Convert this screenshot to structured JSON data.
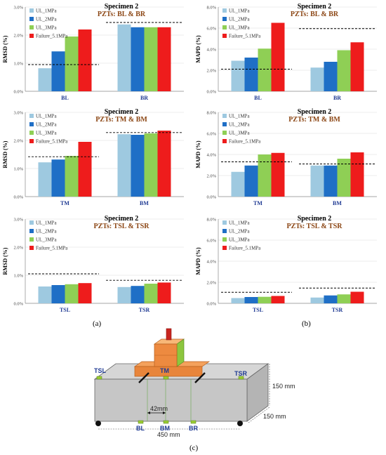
{
  "panel_labels": {
    "a": "(a)",
    "b": "(b)",
    "c": "(c)"
  },
  "colors": {
    "UL_1MPa": "#9ec9e0",
    "UL_2MPa": "#1f6fc6",
    "UL_3MPa": "#8fcf55",
    "Failure_5.1MPa": "#ee1c1c",
    "grid": "#d9d9d9",
    "threshold": "#000000"
  },
  "chart_data": [
    {
      "type": "bar",
      "title": "Specimen 2",
      "subtitle": "PZTs: BL & BR",
      "ylabel": "RMSD (%)",
      "categories": [
        "BL",
        "BR"
      ],
      "ylim": [
        0,
        3.0
      ],
      "yticks": [
        "0.0%",
        "1.0%",
        "2.0%",
        "3.0%"
      ],
      "series": [
        {
          "name": "UL_1MPa",
          "values": [
            0.82,
            2.38
          ]
        },
        {
          "name": "UL_2MPa",
          "values": [
            1.42,
            2.28
          ]
        },
        {
          "name": "UL_3MPa",
          "values": [
            1.95,
            2.28
          ]
        },
        {
          "name": "Failure_5.1MPa",
          "values": [
            2.2,
            2.28
          ]
        }
      ],
      "thresholds": [
        0.95,
        2.45
      ]
    },
    {
      "type": "bar",
      "title": "Specimen 2",
      "subtitle": "PZTs: BL & BR",
      "ylabel": "MAPD (%)",
      "categories": [
        "BL",
        "BR"
      ],
      "ylim": [
        0,
        8.0
      ],
      "yticks": [
        "0.0%",
        "2.0%",
        "4.0%",
        "6.0%",
        "8.0%"
      ],
      "series": [
        {
          "name": "UL_1MPa",
          "values": [
            2.9,
            2.25
          ]
        },
        {
          "name": "UL_2MPa",
          "values": [
            3.2,
            2.8
          ]
        },
        {
          "name": "UL_3MPa",
          "values": [
            4.05,
            3.9
          ]
        },
        {
          "name": "Failure_5.1MPa",
          "values": [
            6.5,
            4.65
          ]
        }
      ],
      "thresholds": [
        2.1,
        5.95
      ]
    },
    {
      "type": "bar",
      "title": "Specimen 2",
      "subtitle": "PZTs: TM & BM",
      "ylabel": "RMSD (%)",
      "categories": [
        "TM",
        "BM"
      ],
      "ylim": [
        0,
        3.0
      ],
      "yticks": [
        "0.0%",
        "1.0%",
        "2.0%",
        "3.0%"
      ],
      "series": [
        {
          "name": "UL_1MPa",
          "values": [
            1.22,
            2.22
          ]
        },
        {
          "name": "UL_2MPa",
          "values": [
            1.32,
            2.2
          ]
        },
        {
          "name": "UL_3MPa",
          "values": [
            1.45,
            2.25
          ]
        },
        {
          "name": "Failure_5.1MPa",
          "values": [
            1.95,
            2.35
          ]
        }
      ],
      "thresholds": [
        1.42,
        2.28
      ]
    },
    {
      "type": "bar",
      "title": "Specimen 2",
      "subtitle": "PZTs: TM & BM",
      "ylabel": "MAPD (%)",
      "categories": [
        "TM",
        "BM"
      ],
      "ylim": [
        0,
        8.0
      ],
      "yticks": [
        "0.0%",
        "2.0%",
        "4.0%",
        "6.0%",
        "8.0%"
      ],
      "series": [
        {
          "name": "UL_1MPa",
          "values": [
            2.35,
            2.95
          ]
        },
        {
          "name": "UL_2MPa",
          "values": [
            2.95,
            2.95
          ]
        },
        {
          "name": "UL_3MPa",
          "values": [
            4.0,
            3.6
          ]
        },
        {
          "name": "Failure_5.1MPa",
          "values": [
            4.15,
            4.2
          ]
        }
      ],
      "thresholds": [
        3.3,
        3.1
      ]
    },
    {
      "type": "bar",
      "title": "Specimen 2",
      "subtitle": "PZTs: TSL & TSR",
      "ylabel": "RMSD (%)",
      "categories": [
        "TSL",
        "TSR"
      ],
      "ylim": [
        0,
        3.0
      ],
      "yticks": [
        "0.0%",
        "1.0%",
        "2.0%",
        "3.0%"
      ],
      "series": [
        {
          "name": "UL_1MPa",
          "values": [
            0.6,
            0.58
          ]
        },
        {
          "name": "UL_2MPa",
          "values": [
            0.65,
            0.62
          ]
        },
        {
          "name": "UL_3MPa",
          "values": [
            0.68,
            0.7
          ]
        },
        {
          "name": "Failure_5.1MPa",
          "values": [
            0.72,
            0.74
          ]
        }
      ],
      "thresholds": [
        1.05,
        0.82
      ]
    },
    {
      "type": "bar",
      "title": "Specimen 2",
      "subtitle": "PZTs:  TSL & TSR",
      "ylabel": "MAPD (%)",
      "categories": [
        "TSL",
        "TSR"
      ],
      "ylim": [
        0,
        8.0
      ],
      "yticks": [
        "0.0%",
        "2.0%",
        "4.0%",
        "6.0%",
        "8.0%"
      ],
      "series": [
        {
          "name": "UL_1MPa",
          "values": [
            0.5,
            0.55
          ]
        },
        {
          "name": "UL_2MPa",
          "values": [
            0.6,
            0.75
          ]
        },
        {
          "name": "UL_3MPa",
          "values": [
            0.62,
            0.85
          ]
        },
        {
          "name": "Failure_5.1MPa",
          "values": [
            0.7,
            1.1
          ]
        }
      ],
      "thresholds": [
        1.05,
        1.45
      ]
    }
  ],
  "diagram": {
    "labels": {
      "tsl": "TSL",
      "tm": "TM",
      "tsr": "TSR",
      "bl": "BL",
      "bm": "BM",
      "br": "BR"
    },
    "dimensions": {
      "height": "150 mm",
      "width": "150 mm",
      "length": "450 mm",
      "offset": "42mm"
    }
  }
}
